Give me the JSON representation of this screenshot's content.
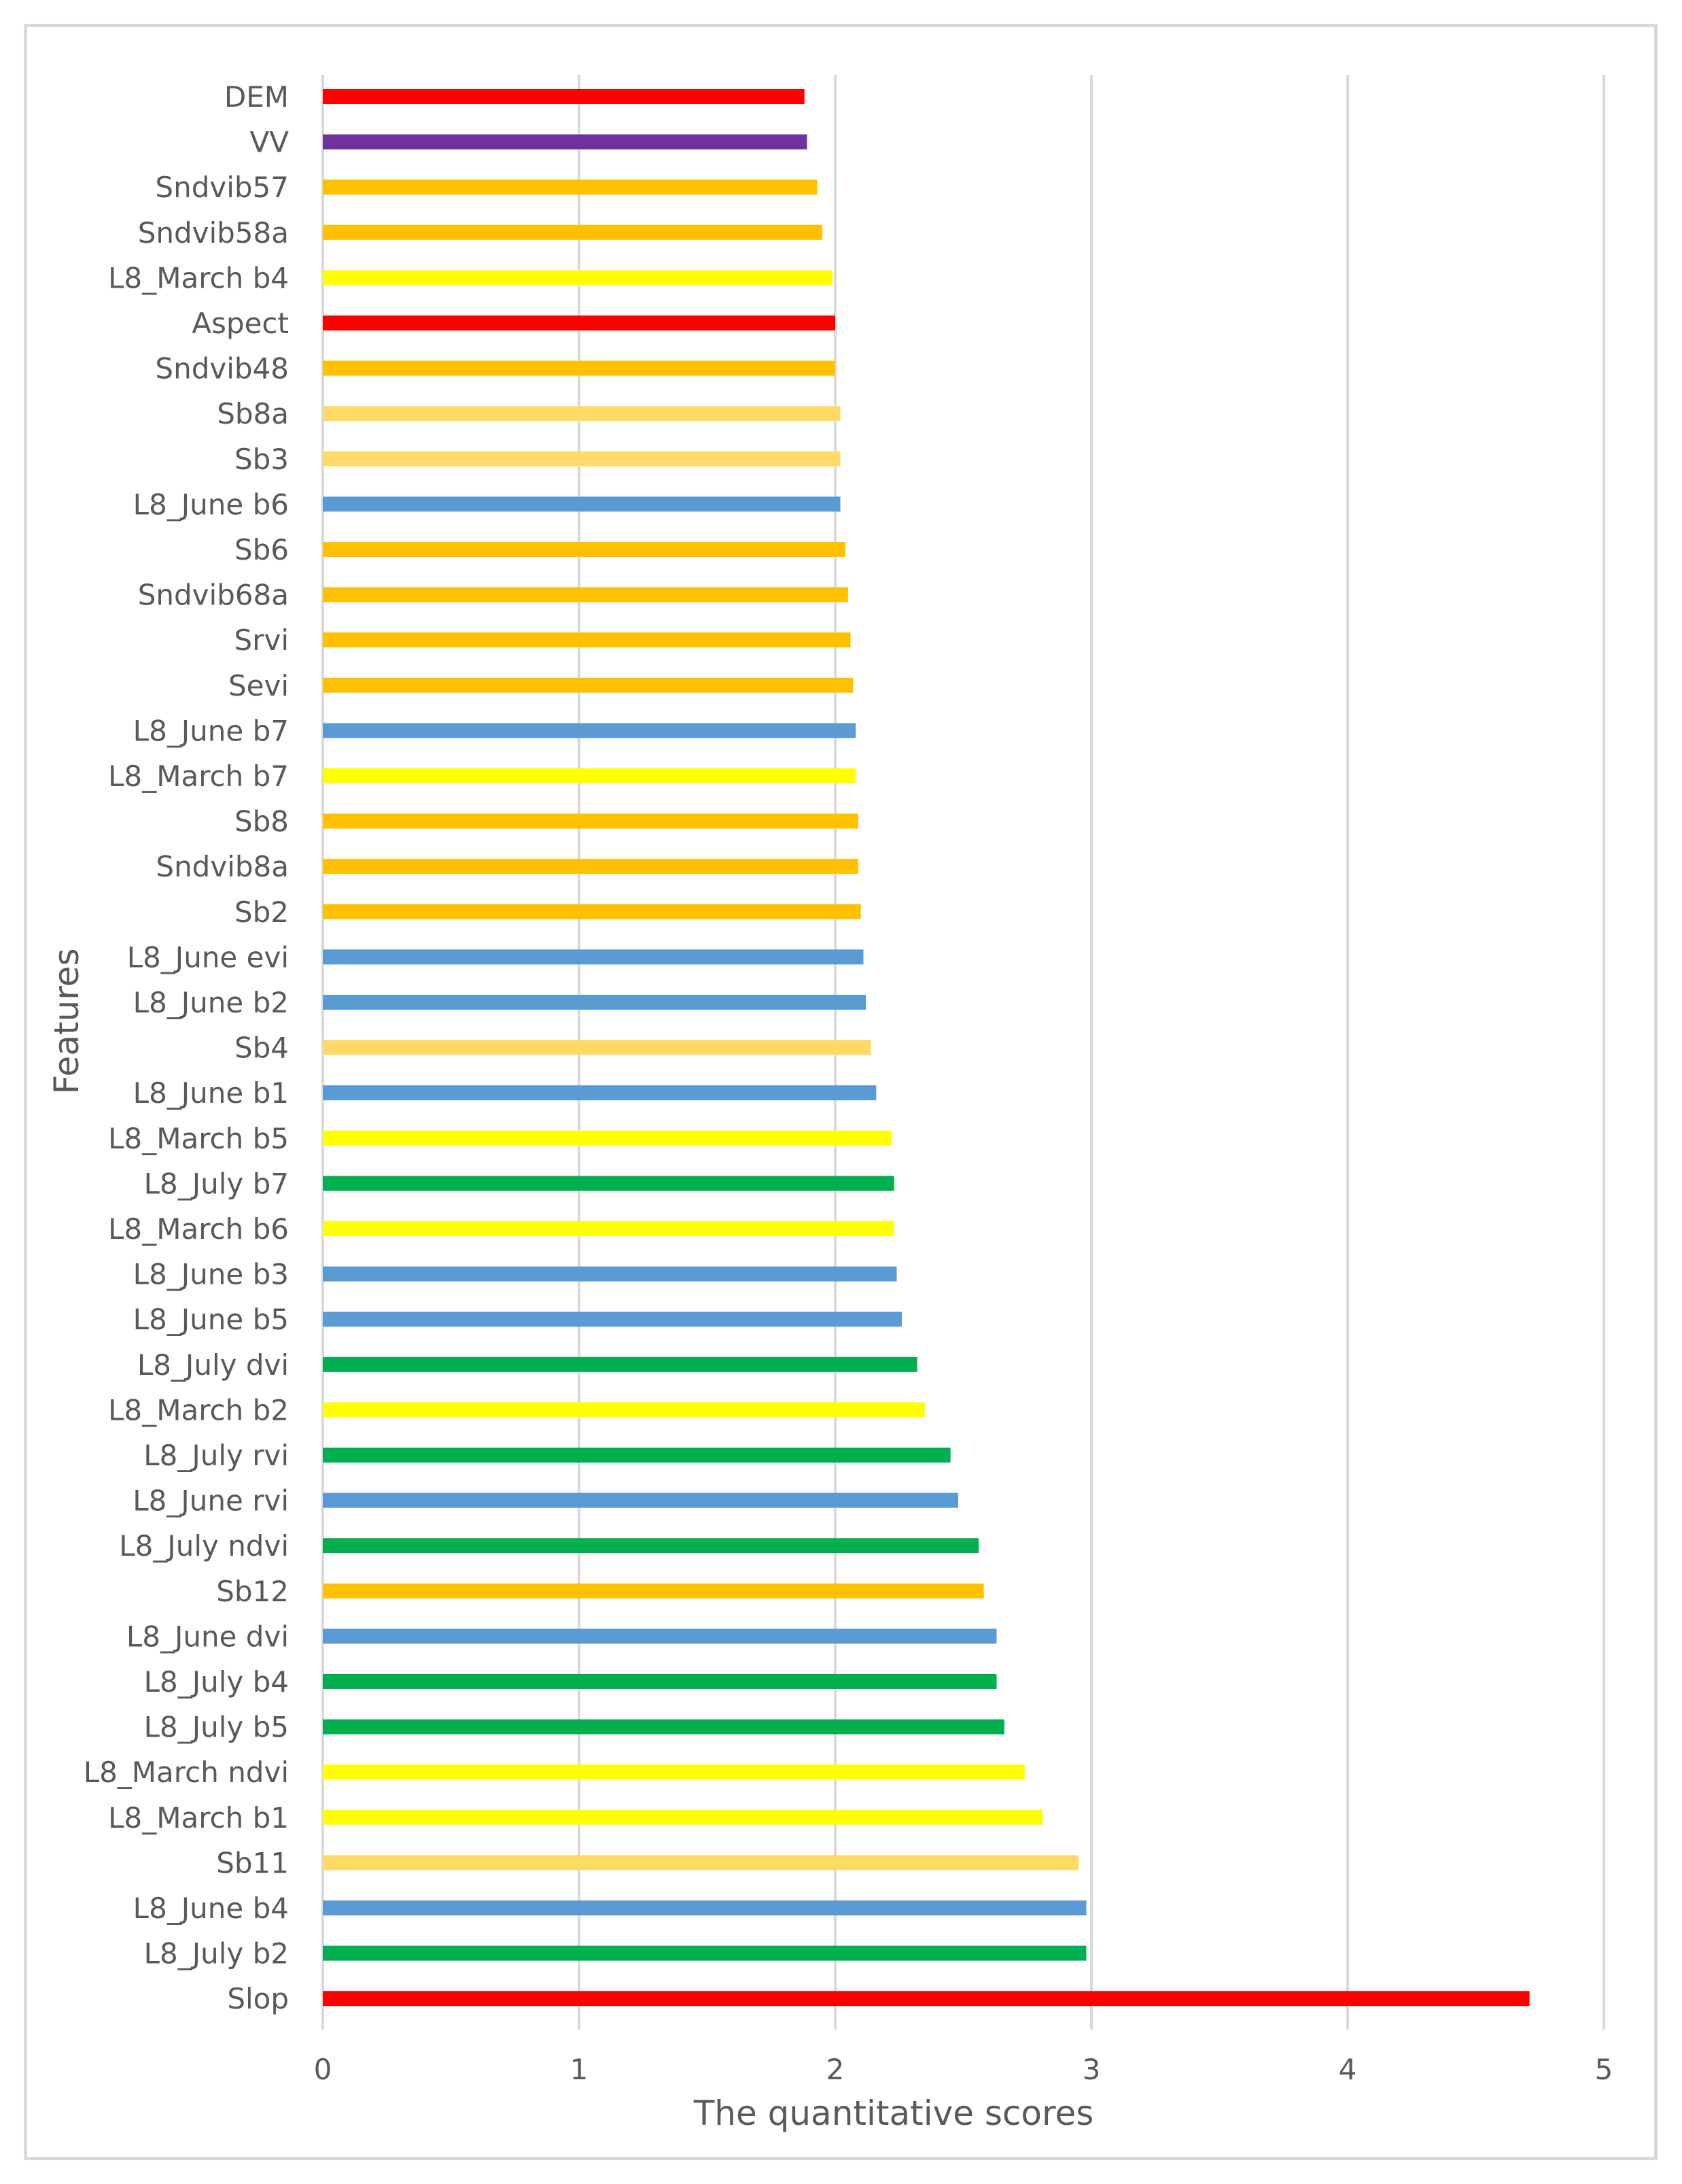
{
  "chart_data": {
    "type": "bar",
    "orientation": "horizontal",
    "title": "",
    "xlabel": "The  quantitative  scores",
    "ylabel": "Features",
    "xlim": [
      0,
      5
    ],
    "xticks": [
      0,
      1,
      2,
      3,
      4,
      5
    ],
    "grid": "vertical",
    "categories": [
      "DEM",
      "VV",
      "Sndvib57",
      "Sndvib58a",
      "L8_March b4",
      "Aspect",
      "Sndvib48",
      "Sb8a",
      "Sb3",
      "L8_June b6",
      "Sb6",
      "Sndvib68a",
      "Srvi",
      "Sevi",
      "L8_June b7",
      "L8_March b7",
      "Sb8",
      "Sndvib8a",
      "Sb2",
      "L8_June evi",
      "L8_June b2",
      "Sb4",
      "L8_June b1",
      "L8_March b5",
      "L8_July b7",
      "L8_March b6",
      "L8_June b3",
      "L8_June b5",
      "L8_July dvi",
      "L8_March b2",
      "L8_July rvi",
      "L8_June rvi",
      "L8_July ndvi",
      "Sb12",
      "L8_June dvi",
      "L8_July b4",
      "L8_July b5",
      "L8_March ndvi",
      "L8_March b1",
      "Sb11",
      "L8_June b4",
      "L8_July b2",
      "Slop"
    ],
    "values": [
      1.88,
      1.89,
      1.93,
      1.95,
      1.99,
      2.0,
      2.0,
      2.02,
      2.02,
      2.02,
      2.04,
      2.05,
      2.06,
      2.07,
      2.08,
      2.08,
      2.09,
      2.09,
      2.1,
      2.11,
      2.12,
      2.14,
      2.16,
      2.22,
      2.23,
      2.23,
      2.24,
      2.26,
      2.32,
      2.35,
      2.45,
      2.48,
      2.56,
      2.58,
      2.63,
      2.63,
      2.66,
      2.74,
      2.81,
      2.95,
      2.98,
      2.98,
      4.71
    ],
    "bar_colors": [
      "#ff0000",
      "#7030a0",
      "#ffc000",
      "#ffc000",
      "#ffff00",
      "#ff0000",
      "#ffc000",
      "#ffd966",
      "#ffd966",
      "#5b9bd5",
      "#ffc000",
      "#ffc000",
      "#ffc000",
      "#ffc000",
      "#5b9bd5",
      "#ffff00",
      "#ffc000",
      "#ffc000",
      "#ffc000",
      "#5b9bd5",
      "#5b9bd5",
      "#ffd966",
      "#5b9bd5",
      "#ffff00",
      "#00b050",
      "#ffff00",
      "#5b9bd5",
      "#5b9bd5",
      "#00b050",
      "#ffff00",
      "#00b050",
      "#5b9bd5",
      "#00b050",
      "#ffc000",
      "#5b9bd5",
      "#00b050",
      "#00b050",
      "#ffff00",
      "#ffff00",
      "#ffd966",
      "#5b9bd5",
      "#00b050",
      "#ff0000"
    ],
    "colors": {
      "grid": "#d9d9d9",
      "text": "#595959",
      "frame": "#d9d9d9"
    }
  }
}
